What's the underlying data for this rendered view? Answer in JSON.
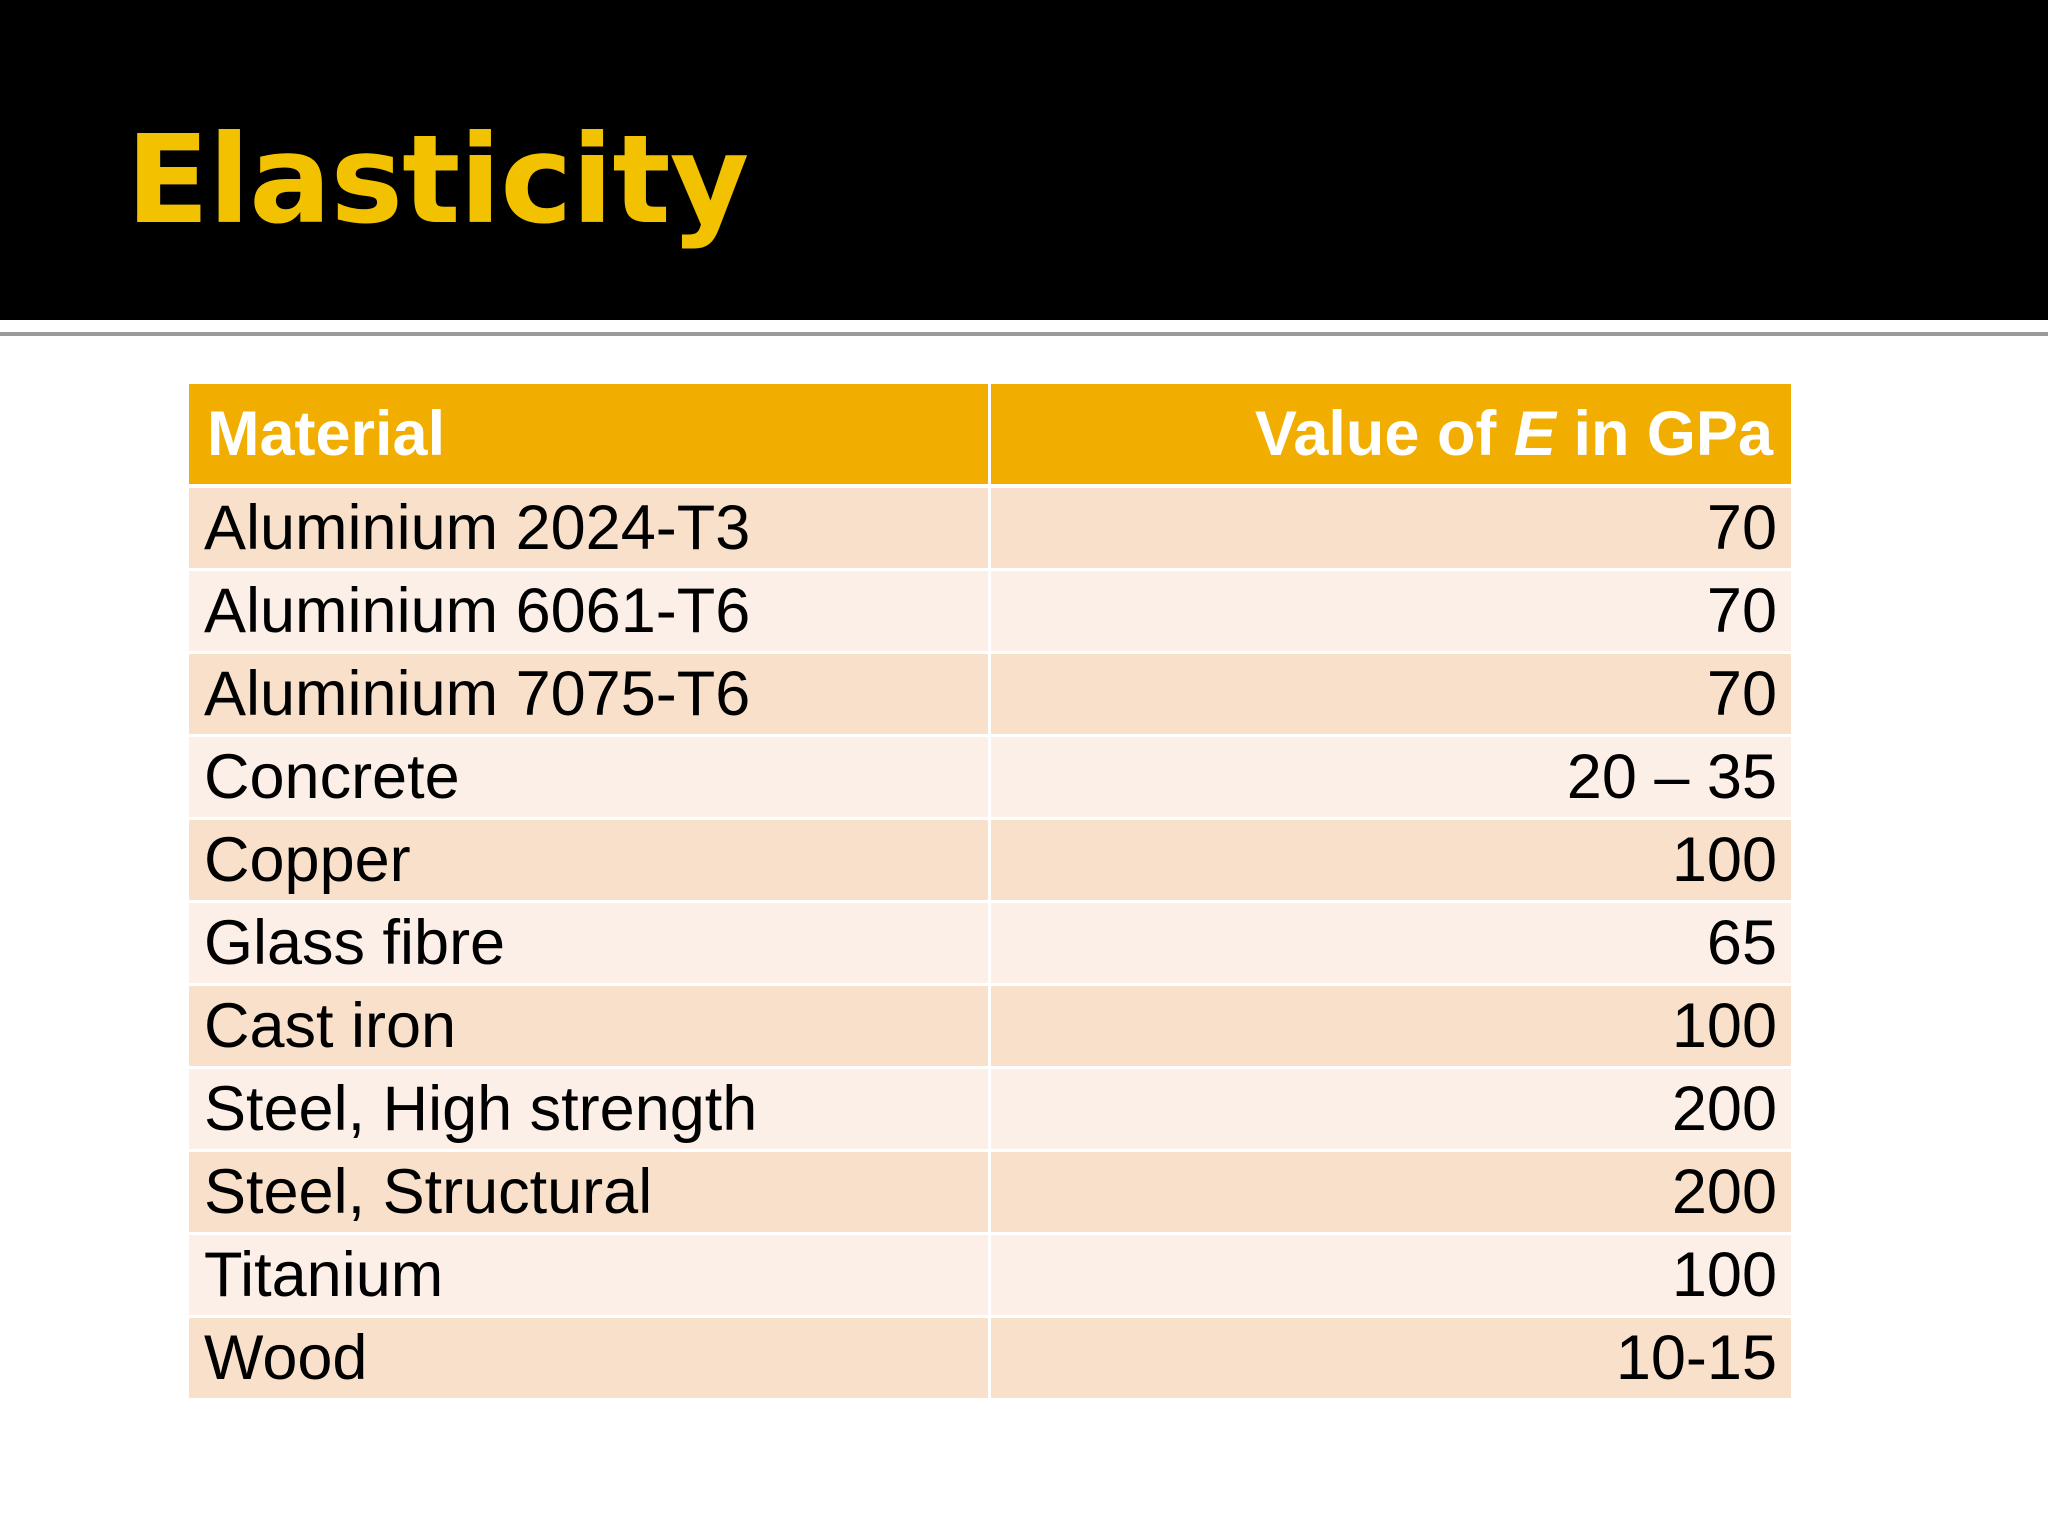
{
  "slide": {
    "title": "Elasticity"
  },
  "table": {
    "header": {
      "material": "Material",
      "value_prefix": "Value of ",
      "value_symbol": "E",
      "value_suffix": " in GPa"
    },
    "rows": [
      {
        "material": "Aluminium 2024-T3",
        "value": "70"
      },
      {
        "material": "Aluminium 6061-T6",
        "value": "70"
      },
      {
        "material": "Aluminium 7075-T6",
        "value": "70"
      },
      {
        "material": "Concrete",
        "value": "20 – 35"
      },
      {
        "material": "Copper",
        "value": "100"
      },
      {
        "material": "Glass fibre",
        "value": "65"
      },
      {
        "material": "Cast iron",
        "value": "100"
      },
      {
        "material": "Steel, High strength",
        "value": "200"
      },
      {
        "material": "Steel, Structural",
        "value": "200"
      },
      {
        "material": "Titanium",
        "value": "100"
      },
      {
        "material": "Wood",
        "value": "10-15"
      }
    ]
  },
  "colors": {
    "title": "#f2c200",
    "header_band": "#000000",
    "table_header": "#f1ae00",
    "row_odd": "#f8e0cb",
    "row_even": "#fbefe7"
  }
}
